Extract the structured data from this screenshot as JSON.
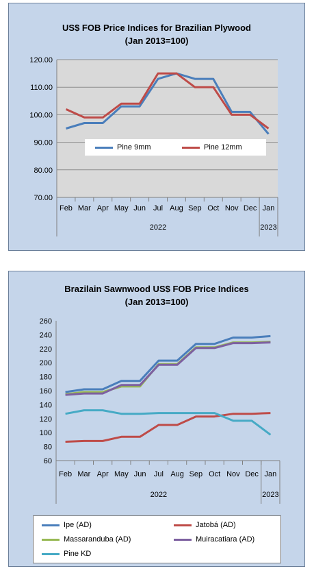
{
  "charts": [
    {
      "title_line1": "US$ FOB Price Indices for Brazilian Plywood",
      "title_line2": "(Jan 2013=100)"
    },
    {
      "title_line1": "Brazilain Sawnwood US$ FOB Price Indices",
      "title_line2": "(Jan 2013=100)"
    }
  ],
  "chart_data": [
    {
      "type": "line",
      "title": "US$ FOB Price Indices for Brazilian Plywood (Jan 2013=100)",
      "categories": [
        "Feb",
        "Mar",
        "Apr",
        "May",
        "Jun",
        "Jul",
        "Aug",
        "Sep",
        "Oct",
        "Nov",
        "Dec",
        "Jan"
      ],
      "year_labels": [
        {
          "label": "2022",
          "span": [
            0,
            10
          ]
        },
        {
          "label": "2023",
          "span": [
            11,
            11
          ]
        }
      ],
      "yticks": [
        "120.00",
        "110.00",
        "100.00",
        "90.00",
        "80.00",
        "70.00"
      ],
      "ylim": [
        70,
        120
      ],
      "grid": true,
      "legend_position": "inside-bottom",
      "series": [
        {
          "name": "Pine 9mm",
          "color": "#4a7ebb",
          "values": [
            95,
            97,
            97,
            103,
            103,
            113,
            115,
            113,
            113,
            101,
            101,
            93
          ]
        },
        {
          "name": "Pine 12mm",
          "color": "#be4b48",
          "values": [
            102,
            99,
            99,
            104,
            104,
            115,
            115,
            110,
            110,
            100,
            100,
            95
          ]
        }
      ]
    },
    {
      "type": "line",
      "title": "Brazilain Sawnwood US$ FOB Price Indices (Jan 2013=100)",
      "categories": [
        "Feb",
        "Mar",
        "Apr",
        "May",
        "Jun",
        "Jul",
        "Aug",
        "Sep",
        "Oct",
        "Nov",
        "Dec",
        "Jan"
      ],
      "year_labels": [
        {
          "label": "2022",
          "span": [
            0,
            10
          ]
        },
        {
          "label": "2023",
          "span": [
            11,
            11
          ]
        }
      ],
      "yticks": [
        "260",
        "240",
        "220",
        "200",
        "180",
        "160",
        "140",
        "120",
        "100",
        "80",
        "60"
      ],
      "ylim": [
        60,
        260
      ],
      "grid": false,
      "legend_position": "bottom",
      "series": [
        {
          "name": "Ipe (AD)",
          "color": "#4a7ebb",
          "values": [
            158,
            162,
            162,
            174,
            174,
            203,
            203,
            227,
            227,
            236,
            236,
            238
          ]
        },
        {
          "name": "Jatobá (AD)",
          "color": "#be4b48",
          "values": [
            87,
            88,
            88,
            94,
            94,
            111,
            111,
            123,
            123,
            127,
            127,
            128
          ]
        },
        {
          "name": "Massaranduba (AD)",
          "color": "#98b954",
          "values": [
            155,
            158,
            158,
            166,
            166,
            198,
            198,
            222,
            222,
            229,
            229,
            230
          ]
        },
        {
          "name": "Muiracatiara (AD)",
          "color": "#7d60a0",
          "values": [
            154,
            156,
            156,
            168,
            168,
            197,
            197,
            221,
            221,
            228,
            228,
            229
          ]
        },
        {
          "name": "Pine KD",
          "color": "#46aac5",
          "values": [
            127,
            132,
            132,
            127,
            127,
            128,
            128,
            128,
            128,
            117,
            117,
            97
          ]
        }
      ]
    }
  ]
}
